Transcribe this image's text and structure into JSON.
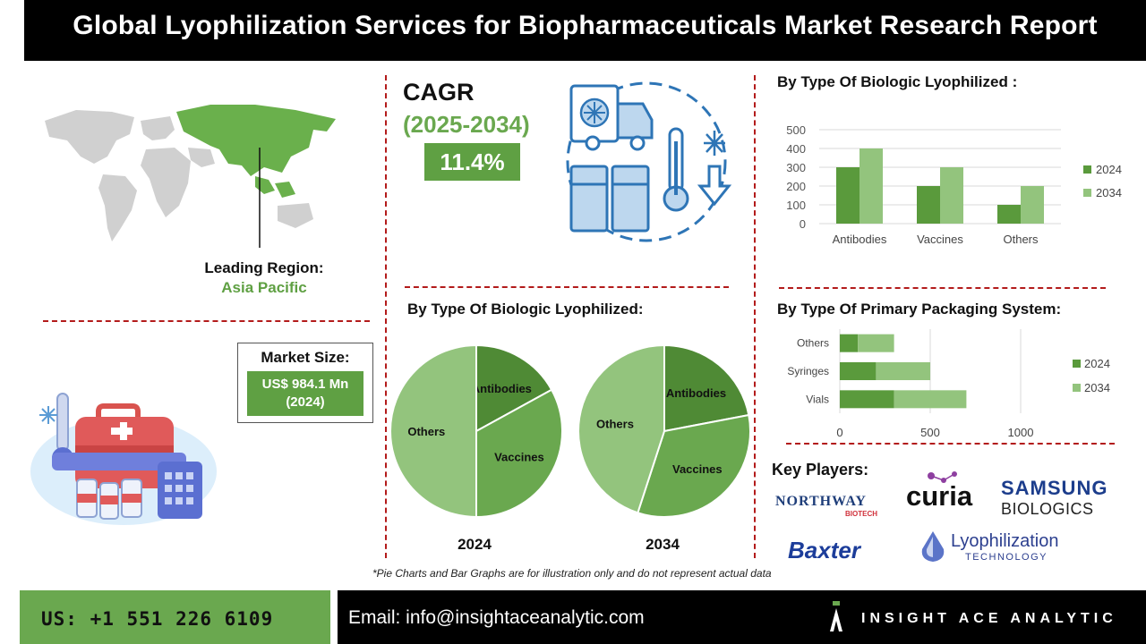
{
  "title": "Global Lyophilization Services for Biopharmaceuticals Market Research Report",
  "region": {
    "label": "Leading Region:",
    "value": "Asia Pacific"
  },
  "cagr": {
    "label": "CAGR",
    "period": "(2025-2034)",
    "value": "11.4%"
  },
  "market_size": {
    "label": "Market Size:",
    "value": "US$ 984.1 Mn",
    "year": "(2024)"
  },
  "sections": {
    "pie_title": "By Type Of Biologic Lyophilized:",
    "bar_title": "By Type Of Biologic Lyophilized :",
    "packaging_title": "By Type Of Primary Packaging System:",
    "key_players_title": "Key Players:"
  },
  "colors": {
    "dark_green": "#5a9a3c",
    "medium_green": "#6aa84f",
    "light_green": "#93c47d",
    "accent_red": "#b31b1b"
  },
  "chart_data": [
    {
      "type": "bar",
      "categories": [
        "Antibodies",
        "Vaccines",
        "Others"
      ],
      "series": [
        {
          "name": "2024",
          "values": [
            300,
            200,
            100
          ]
        },
        {
          "name": "2034",
          "values": [
            400,
            300,
            200
          ]
        }
      ],
      "yticks": [
        "0",
        "100",
        "200",
        "300",
        "400",
        "500"
      ],
      "ylim": [
        0,
        500
      ],
      "legend": "right",
      "grid": true
    },
    {
      "type": "bar",
      "orientation": "horizontal",
      "stacked": true,
      "categories": [
        "Vials",
        "Syringes",
        "Others"
      ],
      "series": [
        {
          "name": "2024",
          "values": [
            300,
            200,
            100
          ]
        },
        {
          "name": "2034",
          "values": [
            400,
            300,
            200
          ]
        }
      ],
      "xticks": [
        "0",
        "500",
        "1000"
      ],
      "xlim": [
        0,
        1000
      ],
      "legend": "right",
      "grid": true
    },
    {
      "type": "pie",
      "label": "2024",
      "slices": [
        {
          "name": "Antibodies",
          "value": 17
        },
        {
          "name": "Vaccines",
          "value": 33
        },
        {
          "name": "Others",
          "value": 50
        }
      ]
    },
    {
      "type": "pie",
      "label": "2034",
      "slices": [
        {
          "name": "Antibodies",
          "value": 22
        },
        {
          "name": "Vaccines",
          "value": 33
        },
        {
          "name": "Others",
          "value": 45
        }
      ]
    }
  ],
  "key_players": [
    {
      "name": "NORTHWAY",
      "sub": "BIOTECH"
    },
    {
      "name": "curia",
      "sub": ""
    },
    {
      "name": "SAMSUNG",
      "sub": "BIOLOGICS"
    },
    {
      "name": "Baxter",
      "sub": ""
    },
    {
      "name": "Lyophilization",
      "sub": "TECHNOLOGY"
    }
  ],
  "footnote": "*Pie Charts and Bar Graphs are for illustration only and do not represent actual data",
  "footer": {
    "phone": "US: +1 551 226 6109",
    "email": "Email: info@insightaceanalytic.com",
    "brand": "INSIGHT ACE ANALYTIC"
  }
}
